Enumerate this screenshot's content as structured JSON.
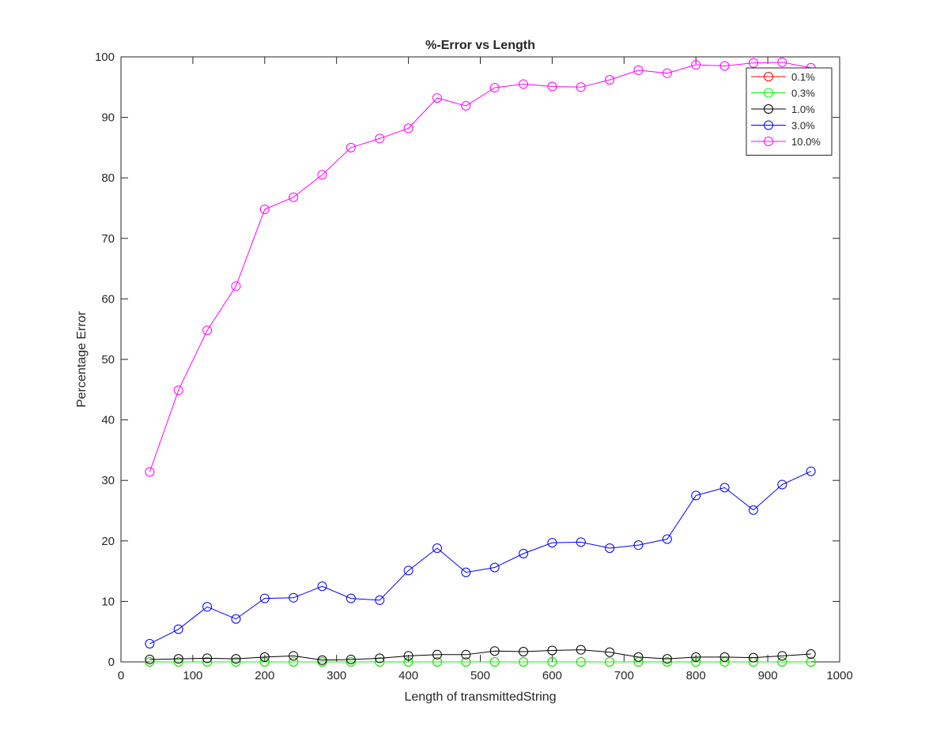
{
  "chart_data": {
    "type": "line",
    "title": "%-Error vs Length",
    "xlabel": "Length of transmittedString",
    "ylabel": "Percentage Error",
    "xlim": [
      0,
      1000
    ],
    "ylim": [
      0,
      100
    ],
    "x_ticks": [
      "0",
      "100",
      "200",
      "300",
      "400",
      "500",
      "600",
      "700",
      "800",
      "900",
      "1000"
    ],
    "y_ticks": [
      "0",
      "10",
      "20",
      "30",
      "40",
      "50",
      "60",
      "70",
      "80",
      "90",
      "100"
    ],
    "grid": false,
    "legend_position": "top-right",
    "marker": "circle",
    "x": [
      40,
      80,
      120,
      160,
      200,
      240,
      280,
      320,
      360,
      400,
      440,
      480,
      520,
      560,
      600,
      640,
      680,
      720,
      760,
      800,
      840,
      880,
      920,
      960
    ],
    "series": [
      {
        "name": "0.1%",
        "color": "#ff0000",
        "values": [
          0,
          0,
          0,
          0,
          0,
          0,
          0,
          0,
          0,
          0,
          0,
          0,
          0,
          0,
          0,
          0,
          0,
          0,
          0,
          0,
          0,
          0,
          0,
          0
        ]
      },
      {
        "name": "0.3%",
        "color": "#00ff00",
        "values": [
          0,
          0,
          0,
          0,
          0,
          0,
          0,
          0,
          0,
          0,
          0,
          0,
          0,
          0,
          0,
          0,
          0,
          0,
          0,
          0,
          0,
          0,
          0,
          0
        ]
      },
      {
        "name": "1.0%",
        "color": "#000000",
        "values": [
          0.4,
          0.5,
          0.6,
          0.5,
          0.8,
          1.0,
          0.3,
          0.4,
          0.6,
          1.0,
          1.2,
          1.2,
          1.8,
          1.7,
          1.9,
          2.0,
          1.6,
          0.8,
          0.5,
          0.8,
          0.8,
          0.7,
          1.0,
          1.3
        ]
      },
      {
        "name": "3.0%",
        "color": "#0000ff",
        "values": [
          3.0,
          5.4,
          9.1,
          7.1,
          10.5,
          10.6,
          12.5,
          10.5,
          10.2,
          15.1,
          18.8,
          14.8,
          15.6,
          17.9,
          19.7,
          19.8,
          18.8,
          19.3,
          20.3,
          27.5,
          28.8,
          25.1,
          29.3,
          31.5
        ]
      },
      {
        "name": "10.0%",
        "color": "#ff00ff",
        "values": [
          31.4,
          44.9,
          54.8,
          62.1,
          74.8,
          76.8,
          80.5,
          85.0,
          86.5,
          88.2,
          93.2,
          91.9,
          94.9,
          95.5,
          95.1,
          95.0,
          96.2,
          97.8,
          97.3,
          98.7,
          98.5,
          99.0,
          99.1,
          98.2
        ]
      }
    ]
  }
}
